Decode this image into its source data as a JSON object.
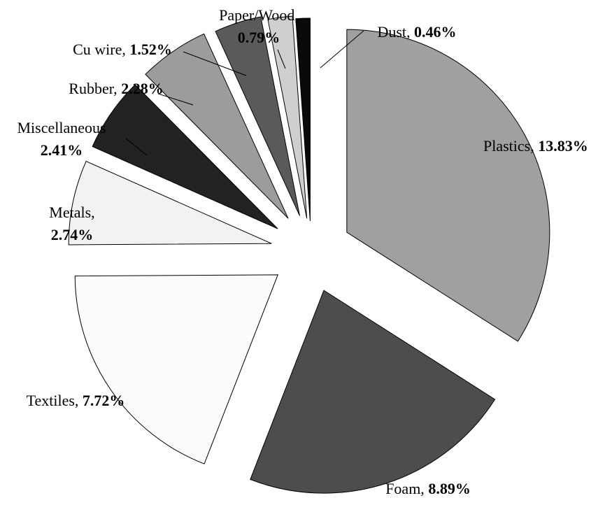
{
  "chart_data": {
    "type": "pie",
    "exploded": true,
    "categories": [
      "Plastics",
      "Foam",
      "Textiles",
      "Metals",
      "Miscellaneous",
      "Rubber",
      "Cu wire",
      "Paper/Wood",
      "Dust"
    ],
    "values": [
      13.83,
      8.89,
      7.72,
      2.74,
      2.41,
      2.28,
      1.52,
      0.79,
      0.46
    ],
    "slices": [
      {
        "name": "Plastics,",
        "value": 13.83,
        "display": "13.83%",
        "color": "#a0a0a0"
      },
      {
        "name": "Foam,",
        "value": 8.89,
        "display": "8.89%",
        "color": "#4d4d4d"
      },
      {
        "name": "Textiles,",
        "value": 7.72,
        "display": "7.72%",
        "color": "#fbfbfb"
      },
      {
        "name": "Metals,",
        "value": 2.74,
        "display": "2.74%",
        "color": "#f2f2f2"
      },
      {
        "name": "Miscellaneous",
        "value": 2.41,
        "display": "2.41%",
        "color": "#222222"
      },
      {
        "name": "Rubber,",
        "value": 2.28,
        "display": "2.28%",
        "color": "#9c9c9c"
      },
      {
        "name": "Cu wire,",
        "value": 1.52,
        "display": "1.52%",
        "color": "#5a5a5a"
      },
      {
        "name": "Paper/Wood,",
        "value": 0.79,
        "display": "0.79%",
        "color": "#cfcfcf"
      },
      {
        "name": "Dust,",
        "value": 0.46,
        "display": "0.46%",
        "color": "#0a0a0a"
      }
    ],
    "title": "",
    "legend": "none",
    "labels": "outside"
  }
}
